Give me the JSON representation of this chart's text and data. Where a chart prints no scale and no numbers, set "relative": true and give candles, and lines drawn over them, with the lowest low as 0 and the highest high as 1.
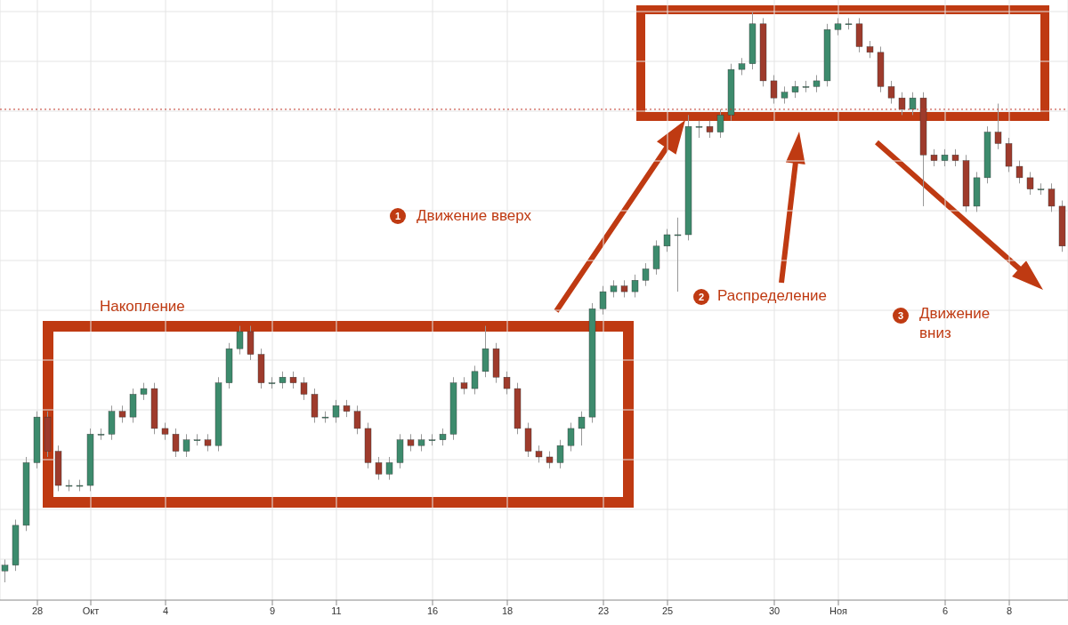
{
  "chart_data": {
    "type": "candlestick",
    "relative": true,
    "grid": true,
    "colors": [
      "#3d8b6d",
      "#3d8b6d",
      "#3d8b6d",
      "#3d8b6d",
      "#9e3b2c",
      "#9e3b2c",
      "#3d8b6d",
      "#3d8b6d",
      "#3d8b6d",
      "#3d8b6d",
      "#3d8b6d",
      "#9e3b2c",
      "#3d8b6d",
      "#3d8b6d",
      "#9e3b2c",
      "#9e3b2c",
      "#9e3b2c",
      "#3d8b6d",
      "#3d8b6d",
      "#9e3b2c",
      "#3d8b6d",
      "#3d8b6d",
      "#3d8b6d",
      "#9e3b2c",
      "#9e3b2c",
      "#3d8b6d",
      "#3d8b6d",
      "#9e3b2c",
      "#9e3b2c",
      "#9e3b2c",
      "#3d8b6d",
      "#3d8b6d",
      "#9e3b2c",
      "#9e3b2c",
      "#9e3b2c",
      "#9e3b2c",
      "#3d8b6d",
      "#3d8b6d",
      "#9e3b2c",
      "#3d8b6d",
      "#3d8b6d",
      "#3d8b6d",
      "#3d8b6d",
      "#9e3b2c",
      "#3d8b6d",
      "#3d8b6d",
      "#9e3b2c",
      "#9e3b2c",
      "#9e3b2c",
      "#9e3b2c",
      "#9e3b2c",
      "#9e3b2c",
      "#3d8b6d",
      "#3d8b6d",
      "#3d8b6d",
      "#3d8b6d",
      "#3d8b6d",
      "#3d8b6d",
      "#9e3b2c",
      "#3d8b6d",
      "#3d8b6d",
      "#3d8b6d",
      "#3d8b6d",
      "#3d8b6d",
      "#3d8b6d",
      "#3d8b6d",
      "#9e3b2c",
      "#3d8b6d",
      "#3d8b6d",
      "#3d8b6d",
      "#3d8b6d",
      "#9e3b2c",
      "#9e3b2c",
      "#3d8b6d",
      "#3d8b6d",
      "#3d8b6d",
      "#3d8b6d",
      "#3d8b6d",
      "#3d8b6d",
      "#3d8b6d",
      "#9e3b2c",
      "#9e3b2c",
      "#9e3b2c",
      "#9e3b2c",
      "#9e3b2c",
      "#3d8b6d",
      "#9e3b2c",
      "#9e3b2c",
      "#3d8b6d",
      "#9e3b2c",
      "#9e3b2c",
      "#3d8b6d",
      "#3d8b6d",
      "#9e3b2c",
      "#9e3b2c",
      "#9e3b2c",
      "#9e3b2c",
      "#3d8b6d",
      "#9e3b2c",
      "#9e3b2c"
    ],
    "categories": [
      null,
      null,
      null,
      "28",
      null,
      null,
      null,
      null,
      "Окт",
      null,
      null,
      null,
      null,
      null,
      null,
      "4",
      null,
      null,
      null,
      null,
      null,
      null,
      null,
      null,
      null,
      "9",
      null,
      null,
      null,
      null,
      null,
      "11",
      null,
      null,
      null,
      null,
      null,
      null,
      null,
      null,
      "16",
      null,
      null,
      null,
      null,
      null,
      null,
      "18",
      null,
      null,
      null,
      null,
      null,
      null,
      null,
      null,
      "23",
      null,
      null,
      null,
      null,
      null,
      "25",
      null,
      null,
      null,
      null,
      null,
      null,
      null,
      null,
      null,
      "30",
      null,
      null,
      null,
      null,
      null,
      "Ноя",
      null,
      null,
      null,
      null,
      null,
      null,
      null,
      null,
      null,
      "6",
      null,
      null,
      null,
      null,
      null,
      "8",
      null,
      null,
      null,
      null,
      null
    ],
    "ohlc": [
      [
        0.02,
        0.04,
        0,
        0.03
      ],
      [
        0.03,
        0.11,
        0.02,
        0.1
      ],
      [
        0.1,
        0.22,
        0.09,
        0.21
      ],
      [
        0.21,
        0.3,
        0.2,
        0.29
      ],
      [
        0.29,
        0.3,
        0.22,
        0.23
      ],
      [
        0.23,
        0.24,
        0.16,
        0.17
      ],
      [
        0.17,
        0.18,
        0.16,
        0.17
      ],
      [
        0.17,
        0.18,
        0.16,
        0.17
      ],
      [
        0.17,
        0.27,
        0.16,
        0.26
      ],
      [
        0.26,
        0.27,
        0.25,
        0.26
      ],
      [
        0.26,
        0.31,
        0.25,
        0.3
      ],
      [
        0.3,
        0.31,
        0.28,
        0.29
      ],
      [
        0.29,
        0.34,
        0.28,
        0.33
      ],
      [
        0.33,
        0.35,
        0.32,
        0.34
      ],
      [
        0.34,
        0.35,
        0.26,
        0.27
      ],
      [
        0.27,
        0.28,
        0.25,
        0.26
      ],
      [
        0.26,
        0.27,
        0.22,
        0.23
      ],
      [
        0.23,
        0.26,
        0.22,
        0.25
      ],
      [
        0.25,
        0.26,
        0.24,
        0.25
      ],
      [
        0.25,
        0.26,
        0.23,
        0.24
      ],
      [
        0.24,
        0.36,
        0.23,
        0.35
      ],
      [
        0.35,
        0.42,
        0.34,
        0.41
      ],
      [
        0.41,
        0.45,
        0.4,
        0.44
      ],
      [
        0.44,
        0.45,
        0.39,
        0.4
      ],
      [
        0.4,
        0.41,
        0.34,
        0.35
      ],
      [
        0.35,
        0.36,
        0.34,
        0.35
      ],
      [
        0.35,
        0.37,
        0.34,
        0.36
      ],
      [
        0.36,
        0.37,
        0.34,
        0.35
      ],
      [
        0.35,
        0.36,
        0.32,
        0.33
      ],
      [
        0.33,
        0.34,
        0.28,
        0.29
      ],
      [
        0.29,
        0.3,
        0.28,
        0.29
      ],
      [
        0.29,
        0.32,
        0.28,
        0.31
      ],
      [
        0.31,
        0.32,
        0.29,
        0.3
      ],
      [
        0.3,
        0.31,
        0.26,
        0.27
      ],
      [
        0.27,
        0.28,
        0.2,
        0.21
      ],
      [
        0.21,
        0.22,
        0.18,
        0.19
      ],
      [
        0.19,
        0.22,
        0.18,
        0.21
      ],
      [
        0.21,
        0.26,
        0.2,
        0.25
      ],
      [
        0.25,
        0.26,
        0.23,
        0.24
      ],
      [
        0.24,
        0.26,
        0.23,
        0.25
      ],
      [
        0.25,
        0.26,
        0.24,
        0.25
      ],
      [
        0.25,
        0.27,
        0.24,
        0.26
      ],
      [
        0.26,
        0.36,
        0.25,
        0.35
      ],
      [
        0.35,
        0.36,
        0.33,
        0.34
      ],
      [
        0.34,
        0.38,
        0.33,
        0.37
      ],
      [
        0.37,
        0.45,
        0.36,
        0.41
      ],
      [
        0.41,
        0.42,
        0.35,
        0.36
      ],
      [
        0.36,
        0.37,
        0.33,
        0.34
      ],
      [
        0.34,
        0.35,
        0.26,
        0.27
      ],
      [
        0.27,
        0.28,
        0.22,
        0.23
      ],
      [
        0.23,
        0.24,
        0.21,
        0.22
      ],
      [
        0.22,
        0.23,
        0.2,
        0.21
      ],
      [
        0.21,
        0.25,
        0.2,
        0.24
      ],
      [
        0.24,
        0.28,
        0.23,
        0.27
      ],
      [
        0.27,
        0.3,
        0.24,
        0.29
      ],
      [
        0.29,
        0.49,
        0.28,
        0.48
      ],
      [
        0.48,
        0.52,
        0.47,
        0.51
      ],
      [
        0.51,
        0.53,
        0.5,
        0.52
      ],
      [
        0.52,
        0.53,
        0.5,
        0.51
      ],
      [
        0.51,
        0.54,
        0.5,
        0.53
      ],
      [
        0.53,
        0.56,
        0.52,
        0.55
      ],
      [
        0.55,
        0.6,
        0.54,
        0.59
      ],
      [
        0.59,
        0.62,
        0.58,
        0.61
      ],
      [
        0.61,
        0.64,
        0.51,
        0.61
      ],
      [
        0.61,
        0.82,
        0.6,
        0.8
      ],
      [
        0.8,
        0.81,
        0.78,
        0.8
      ],
      [
        0.8,
        0.81,
        0.78,
        0.79
      ],
      [
        0.79,
        0.83,
        0.78,
        0.82
      ],
      [
        0.82,
        0.91,
        0.81,
        0.9
      ],
      [
        0.9,
        0.92,
        0.89,
        0.91
      ],
      [
        0.91,
        1,
        0.9,
        0.98
      ],
      [
        0.98,
        0.99,
        0.87,
        0.88
      ],
      [
        0.88,
        0.89,
        0.84,
        0.85
      ],
      [
        0.85,
        0.87,
        0.84,
        0.86
      ],
      [
        0.86,
        0.88,
        0.85,
        0.87
      ],
      [
        0.87,
        0.88,
        0.86,
        0.87
      ],
      [
        0.87,
        0.89,
        0.86,
        0.88
      ],
      [
        0.88,
        0.98,
        0.87,
        0.97
      ],
      [
        0.97,
        0.99,
        0.96,
        0.98
      ],
      [
        0.98,
        0.99,
        0.97,
        0.98
      ],
      [
        0.98,
        0.99,
        0.93,
        0.94
      ],
      [
        0.94,
        0.95,
        0.92,
        0.93
      ],
      [
        0.93,
        0.94,
        0.86,
        0.87
      ],
      [
        0.87,
        0.88,
        0.84,
        0.85
      ],
      [
        0.85,
        0.86,
        0.82,
        0.83
      ],
      [
        0.83,
        0.86,
        0.82,
        0.85
      ],
      [
        0.85,
        0.86,
        0.66,
        0.75
      ],
      [
        0.75,
        0.76,
        0.73,
        0.74
      ],
      [
        0.74,
        0.76,
        0.73,
        0.75
      ],
      [
        0.75,
        0.76,
        0.73,
        0.74
      ],
      [
        0.74,
        0.75,
        0.65,
        0.66
      ],
      [
        0.66,
        0.72,
        0.65,
        0.71
      ],
      [
        0.71,
        0.8,
        0.7,
        0.79
      ],
      [
        0.79,
        0.84,
        0.76,
        0.77
      ],
      [
        0.77,
        0.78,
        0.72,
        0.73
      ],
      [
        0.73,
        0.74,
        0.7,
        0.71
      ],
      [
        0.71,
        0.72,
        0.68,
        0.69
      ],
      [
        0.69,
        0.7,
        0.68,
        0.69
      ],
      [
        0.69,
        0.7,
        0.65,
        0.66
      ],
      [
        0.66,
        0.67,
        0.58,
        0.59
      ]
    ],
    "ref_lines": [
      {
        "axis": "y",
        "value": 0.83,
        "color": "#c0392b",
        "line_style": "dotted"
      }
    ],
    "annotations": [
      "Накопление",
      "1",
      "Движение вверх",
      "2",
      "Распределение",
      "3",
      "Движение вниз"
    ]
  }
}
